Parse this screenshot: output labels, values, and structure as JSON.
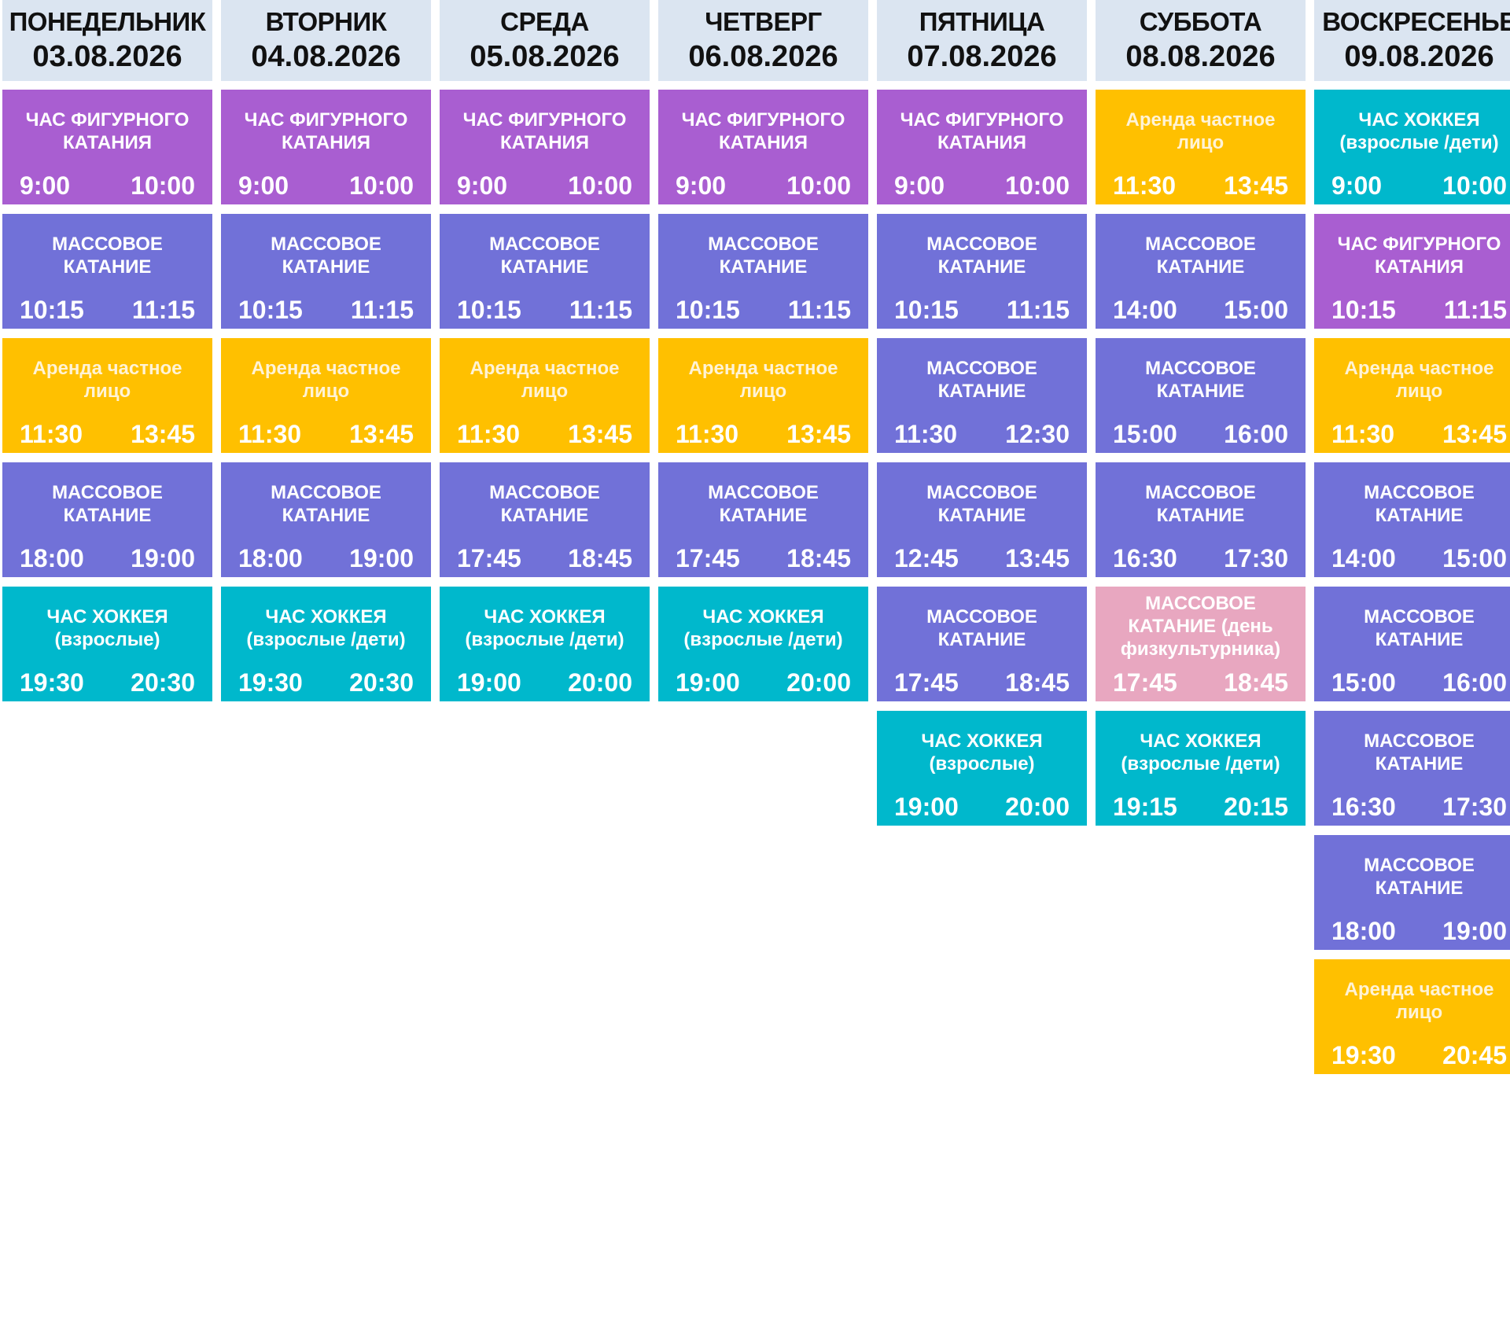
{
  "colors": {
    "figure": "#a95ed1",
    "mass": "#7171d8",
    "rent": "#ffc000",
    "hockey": "#00b8cc",
    "pink": "#e8a7c0",
    "header": "#dbe5f1"
  },
  "days": [
    {
      "day": "ПОНЕДЕЛЬНИК",
      "date": "03.08.2026",
      "events": [
        {
          "type": "figure",
          "title": "ЧАС ФИГУРНОГО КАТАНИЯ",
          "start": "9:00",
          "end": "10:00"
        },
        {
          "type": "mass",
          "title": "МАССОВОЕ КАТАНИЕ",
          "start": "10:15",
          "end": "11:15"
        },
        {
          "type": "rent",
          "title": "Аренда частное лицо",
          "start": "11:30",
          "end": "13:45"
        },
        {
          "type": "mass",
          "title": "МАССОВОЕ КАТАНИЕ",
          "start": "18:00",
          "end": "19:00"
        },
        {
          "type": "hockey",
          "title": "ЧАС ХОККЕЯ (взрослые)",
          "start": "19:30",
          "end": "20:30"
        }
      ]
    },
    {
      "day": "ВТОРНИК",
      "date": "04.08.2026",
      "events": [
        {
          "type": "figure",
          "title": "ЧАС ФИГУРНОГО КАТАНИЯ",
          "start": "9:00",
          "end": "10:00"
        },
        {
          "type": "mass",
          "title": "МАССОВОЕ КАТАНИЕ",
          "start": "10:15",
          "end": "11:15"
        },
        {
          "type": "rent",
          "title": "Аренда частное лицо",
          "start": "11:30",
          "end": "13:45"
        },
        {
          "type": "mass",
          "title": "МАССОВОЕ КАТАНИЕ",
          "start": "18:00",
          "end": "19:00"
        },
        {
          "type": "hockey",
          "title": "ЧАС ХОККЕЯ (взрослые /дети)",
          "start": "19:30",
          "end": "20:30"
        }
      ]
    },
    {
      "day": "СРЕДА",
      "date": "05.08.2026",
      "events": [
        {
          "type": "figure",
          "title": "ЧАС ФИГУРНОГО КАТАНИЯ",
          "start": "9:00",
          "end": "10:00"
        },
        {
          "type": "mass",
          "title": "МАССОВОЕ КАТАНИЕ",
          "start": "10:15",
          "end": "11:15"
        },
        {
          "type": "rent",
          "title": "Аренда частное лицо",
          "start": "11:30",
          "end": "13:45"
        },
        {
          "type": "mass",
          "title": "МАССОВОЕ КАТАНИЕ",
          "start": "17:45",
          "end": "18:45"
        },
        {
          "type": "hockey",
          "title": "ЧАС ХОККЕЯ (взрослые /дети)",
          "start": "19:00",
          "end": "20:00"
        }
      ]
    },
    {
      "day": "ЧЕТВЕРГ",
      "date": "06.08.2026",
      "events": [
        {
          "type": "figure",
          "title": "ЧАС ФИГУРНОГО КАТАНИЯ",
          "start": "9:00",
          "end": "10:00"
        },
        {
          "type": "mass",
          "title": "МАССОВОЕ КАТАНИЕ",
          "start": "10:15",
          "end": "11:15"
        },
        {
          "type": "rent",
          "title": "Аренда частное лицо",
          "start": "11:30",
          "end": "13:45"
        },
        {
          "type": "mass",
          "title": "МАССОВОЕ КАТАНИЕ",
          "start": "17:45",
          "end": "18:45"
        },
        {
          "type": "hockey",
          "title": "ЧАС ХОККЕЯ (взрослые /дети)",
          "start": "19:00",
          "end": "20:00"
        }
      ]
    },
    {
      "day": "ПЯТНИЦА",
      "date": "07.08.2026",
      "events": [
        {
          "type": "figure",
          "title": "ЧАС ФИГУРНОГО КАТАНИЯ",
          "start": "9:00",
          "end": "10:00"
        },
        {
          "type": "mass",
          "title": "МАССОВОЕ КАТАНИЕ",
          "start": "10:15",
          "end": "11:15"
        },
        {
          "type": "mass",
          "title": "МАССОВОЕ КАТАНИЕ",
          "start": "11:30",
          "end": "12:30"
        },
        {
          "type": "mass",
          "title": "МАССОВОЕ КАТАНИЕ",
          "start": "12:45",
          "end": "13:45"
        },
        {
          "type": "mass",
          "title": "МАССОВОЕ КАТАНИЕ",
          "start": "17:45",
          "end": "18:45"
        },
        {
          "type": "hockey",
          "title": "ЧАС ХОККЕЯ (взрослые)",
          "start": "19:00",
          "end": "20:00"
        }
      ]
    },
    {
      "day": "СУББОТА",
      "date": "08.08.2026",
      "events": [
        {
          "type": "rent",
          "title": "Аренда частное лицо",
          "start": "11:30",
          "end": "13:45"
        },
        {
          "type": "mass",
          "title": "МАССОВОЕ КАТАНИЕ",
          "start": "14:00",
          "end": "15:00"
        },
        {
          "type": "mass",
          "title": "МАССОВОЕ КАТАНИЕ",
          "start": "15:00",
          "end": "16:00"
        },
        {
          "type": "mass",
          "title": "МАССОВОЕ КАТАНИЕ",
          "start": "16:30",
          "end": "17:30"
        },
        {
          "type": "pink",
          "title": "МАССОВОЕ КАТАНИЕ (день физкультурника)",
          "start": "17:45",
          "end": "18:45"
        },
        {
          "type": "hockey",
          "title": "ЧАС ХОККЕЯ (взрослые /дети)",
          "start": "19:15",
          "end": "20:15"
        }
      ]
    },
    {
      "day": "ВОСКРЕСЕНЬЕ",
      "date": "09.08.2026",
      "events": [
        {
          "type": "hockey",
          "title": "ЧАС ХОККЕЯ (взрослые /дети)",
          "start": "9:00",
          "end": "10:00"
        },
        {
          "type": "figure",
          "title": "ЧАС ФИГУРНОГО КАТАНИЯ",
          "start": "10:15",
          "end": "11:15"
        },
        {
          "type": "rent",
          "title": "Аренда частное лицо",
          "start": "11:30",
          "end": "13:45"
        },
        {
          "type": "mass",
          "title": "МАССОВОЕ КАТАНИЕ",
          "start": "14:00",
          "end": "15:00"
        },
        {
          "type": "mass",
          "title": "МАССОВОЕ КАТАНИЕ",
          "start": "15:00",
          "end": "16:00"
        },
        {
          "type": "mass",
          "title": "МАССОВОЕ КАТАНИЕ",
          "start": "16:30",
          "end": "17:30"
        },
        {
          "type": "mass",
          "title": "МАССОВОЕ КАТАНИЕ",
          "start": "18:00",
          "end": "19:00"
        },
        {
          "type": "rent",
          "title": "Аренда частное лицо",
          "start": "19:30",
          "end": "20:45"
        }
      ]
    }
  ]
}
